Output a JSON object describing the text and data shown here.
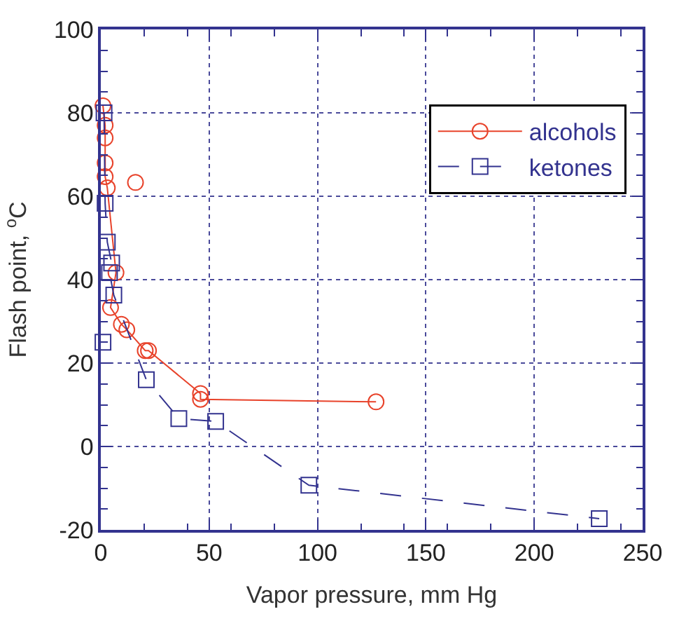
{
  "chart_data": {
    "type": "line",
    "xlabel": "Vapor pressure, mm Hg",
    "ylabel": "Flash point, $^{o}$C",
    "xlim": [
      0,
      250
    ],
    "xticks": [
      0,
      50,
      100,
      150,
      200,
      250
    ],
    "ylim": [
      -20,
      100
    ],
    "yticks": [
      -20,
      0,
      20,
      40,
      60,
      80,
      100
    ],
    "grid": true,
    "legend": "top right",
    "series": [
      {
        "name": "alcohols",
        "color": "#e8432b",
        "marker": "circle",
        "line_style": "solid",
        "x": [
          1,
          2,
          2,
          2,
          2,
          3,
          7,
          4.5,
          9.5,
          12,
          20.5,
          22,
          46,
          46,
          127,
          null,
          16
        ],
        "values": [
          81.7,
          77,
          74,
          68,
          64.7,
          62,
          41.7,
          33.3,
          29.3,
          28,
          23,
          23,
          12.7,
          11.3,
          10.7,
          null,
          63.3
        ]
      },
      {
        "name": "ketones",
        "color": "#33338f",
        "marker": "square",
        "line_style": "dashed",
        "x": [
          1.5,
          2,
          3,
          5,
          4,
          6,
          21,
          36,
          53,
          96,
          230,
          null,
          1
        ],
        "values": [
          80,
          58.3,
          49,
          44,
          41.7,
          36.3,
          16,
          6.7,
          6,
          -9.3,
          -17.3,
          null,
          25
        ]
      }
    ]
  }
}
